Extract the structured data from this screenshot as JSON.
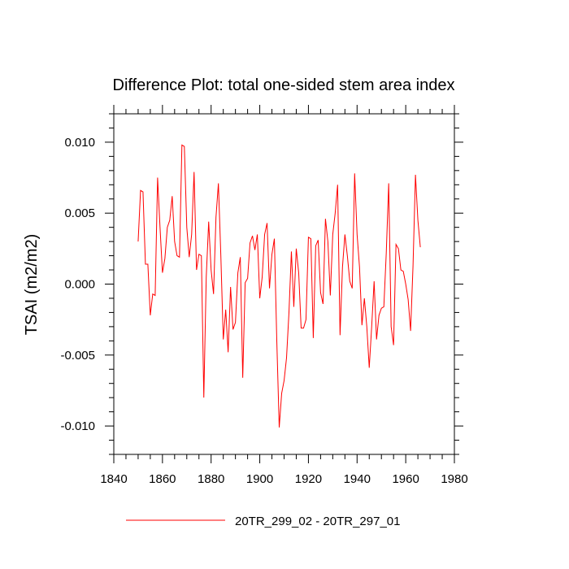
{
  "chart_data": {
    "type": "line",
    "title": "Difference Plot: total one-sided stem area index",
    "ylabel": "TSAI  (m2/m2)",
    "xlabel": "",
    "xlim": [
      1840,
      1980
    ],
    "ylim": [
      -0.012,
      0.012
    ],
    "x_ticks": [
      1840,
      1860,
      1880,
      1900,
      1920,
      1940,
      1960,
      1980
    ],
    "x_tick_labels": [
      "1840",
      "1860",
      "1880",
      "1900",
      "1920",
      "1940",
      "1960",
      "1980"
    ],
    "y_ticks": [
      -0.01,
      -0.005,
      0.0,
      0.005,
      0.01
    ],
    "y_tick_labels": [
      "-0.010",
      "-0.005",
      "0.000",
      "0.005",
      "0.010"
    ],
    "grid": false,
    "legend_position": "bottom-center",
    "series": [
      {
        "name": "20TR_299_02 - 20TR_297_01",
        "color": "#ff0000",
        "x": [
          1850,
          1851,
          1852,
          1853,
          1854,
          1855,
          1856,
          1857,
          1858,
          1859,
          1860,
          1861,
          1862,
          1863,
          1864,
          1865,
          1866,
          1867,
          1868,
          1869,
          1870,
          1871,
          1872,
          1873,
          1874,
          1875,
          1876,
          1877,
          1878,
          1879,
          1880,
          1881,
          1882,
          1883,
          1884,
          1885,
          1886,
          1887,
          1888,
          1889,
          1890,
          1891,
          1892,
          1893,
          1894,
          1895,
          1896,
          1897,
          1898,
          1899,
          1900,
          1901,
          1902,
          1903,
          1904,
          1905,
          1906,
          1907,
          1908,
          1909,
          1910,
          1911,
          1912,
          1913,
          1914,
          1915,
          1916,
          1917,
          1918,
          1919,
          1920,
          1921,
          1922,
          1923,
          1924,
          1925,
          1926,
          1927,
          1928,
          1929,
          1930,
          1931,
          1932,
          1933,
          1934,
          1935,
          1936,
          1937,
          1938,
          1939,
          1940,
          1941,
          1942,
          1943,
          1944,
          1945,
          1946,
          1947,
          1948,
          1949,
          1950,
          1951,
          1952,
          1953,
          1954,
          1955,
          1956,
          1957,
          1958,
          1959,
          1960,
          1961,
          1962,
          1963,
          1964,
          1965,
          1966
        ],
        "values": [
          0.003,
          0.0066,
          0.0065,
          0.0014,
          0.0014,
          -0.0022,
          -0.0007,
          -0.0008,
          0.0075,
          0.004,
          0.0008,
          0.0018,
          0.004,
          0.0045,
          0.0062,
          0.003,
          0.002,
          0.0019,
          0.0098,
          0.0097,
          0.004,
          0.0019,
          0.0035,
          0.0079,
          0.001,
          0.0021,
          0.002,
          -0.008,
          0.0005,
          0.0044,
          0.001,
          -0.0007,
          0.0047,
          0.0071,
          0.002,
          -0.0039,
          -0.0018,
          -0.0048,
          -0.0002,
          -0.0032,
          -0.0027,
          0.0008,
          0.0019,
          -0.0066,
          0.0001,
          0.0004,
          0.0029,
          0.0034,
          0.0024,
          0.0035,
          -0.001,
          0.0005,
          0.0035,
          0.0043,
          -0.0003,
          0.0021,
          0.0032,
          -0.004,
          -0.0101,
          -0.0077,
          -0.0068,
          -0.0052,
          -0.002,
          0.0023,
          -0.0016,
          0.0025,
          0.0008,
          -0.0031,
          -0.0031,
          -0.0025,
          0.0033,
          0.0032,
          -0.0038,
          0.0027,
          0.0031,
          -0.0006,
          -0.0014,
          0.0046,
          0.003,
          -0.0008,
          0.0035,
          0.005,
          0.007,
          -0.0036,
          0.0012,
          0.0035,
          0.002,
          0.0002,
          -0.0003,
          0.0078,
          0.0035,
          0.0012,
          -0.0029,
          -0.001,
          -0.003,
          -0.0059,
          -0.003,
          0.0002,
          -0.0039,
          -0.0022,
          -0.0017,
          -0.0016,
          0.0022,
          0.0071,
          -0.003,
          -0.0043,
          0.0028,
          0.0025,
          0.001,
          0.0009,
          0.0,
          -0.0011,
          -0.0033,
          0.0013,
          0.0077,
          0.0045,
          0.0026
        ]
      }
    ]
  }
}
